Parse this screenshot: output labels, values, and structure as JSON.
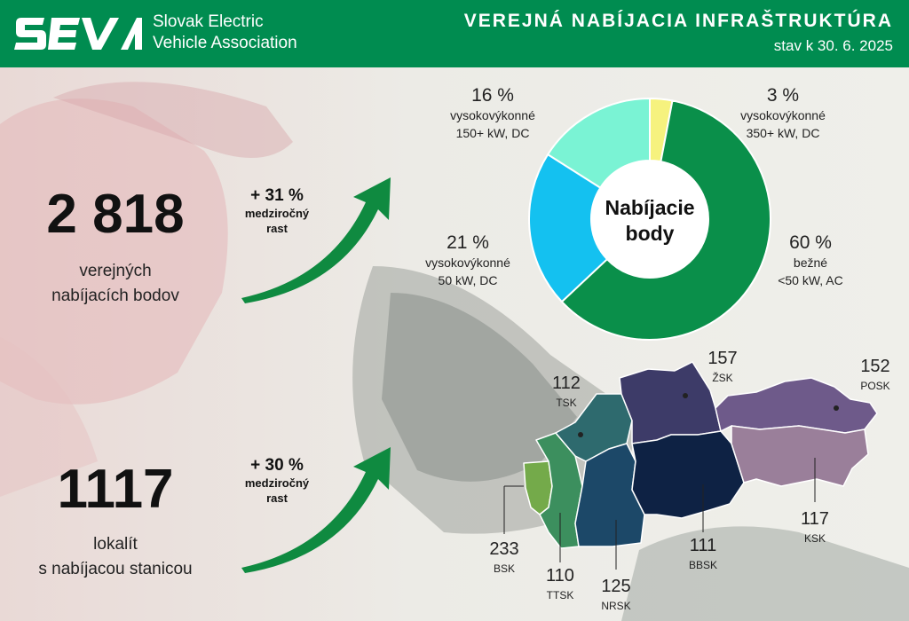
{
  "header": {
    "org_line1": "Slovak Electric",
    "org_line2": "Vehicle Association",
    "title": "VEREJNÁ NABÍJACIA INFRAŠTRUKTÚRA",
    "date": "stav k 30. 6. 2025",
    "brand_color": "#008c50"
  },
  "stats": {
    "points": {
      "value": "2 818",
      "caption_line1": "verejných",
      "caption_line2": "nabíjacích bodov",
      "growth": "+ 31 %",
      "growth_line1": "medziročný",
      "growth_line2": "rast"
    },
    "locations": {
      "value": "1117",
      "caption_line1": "lokalít",
      "caption_line2": "s nabíjacou stanicou",
      "growth": "+ 30 %",
      "growth_line1": "medziročný",
      "growth_line2": "rast"
    }
  },
  "chart_data": [
    {
      "type": "pie",
      "title": "Nabíjacie body",
      "title_line1": "Nabíjacie",
      "title_line2": "body",
      "slices": [
        {
          "pct_label": "3 %",
          "value": 3,
          "line1": "vysokovýkonné",
          "line2": "350+ kW, DC",
          "color": "#f6f27e"
        },
        {
          "pct_label": "60 %",
          "value": 60,
          "line1": "bežné",
          "line2": "<50 kW, AC",
          "color": "#0a8f4a"
        },
        {
          "pct_label": "21 %",
          "value": 21,
          "line1": "vysokovýkonné",
          "line2": "50 kW, DC",
          "color": "#14c1f0"
        },
        {
          "pct_label": "16 %",
          "value": 16,
          "line1": "vysokovýkonné",
          "line2": "150+ kW, DC",
          "color": "#7af3d4"
        }
      ]
    },
    {
      "type": "map",
      "regions": [
        {
          "code": "BSK",
          "value": 233,
          "color": "#74aa4a"
        },
        {
          "code": "TTSK",
          "value": 110,
          "color": "#3c8f5e"
        },
        {
          "code": "TSK",
          "value": 112,
          "color": "#2e6a6e"
        },
        {
          "code": "NRSK",
          "value": 125,
          "color": "#1c4868"
        },
        {
          "code": "ŽSK",
          "value": 157,
          "color": "#3d3b68"
        },
        {
          "code": "BBSK",
          "value": 111,
          "color": "#0e2244"
        },
        {
          "code": "POSK",
          "value": 152,
          "color": "#6e5a8a"
        },
        {
          "code": "KSK",
          "value": 117,
          "color": "#9a7f9a"
        }
      ]
    }
  ]
}
